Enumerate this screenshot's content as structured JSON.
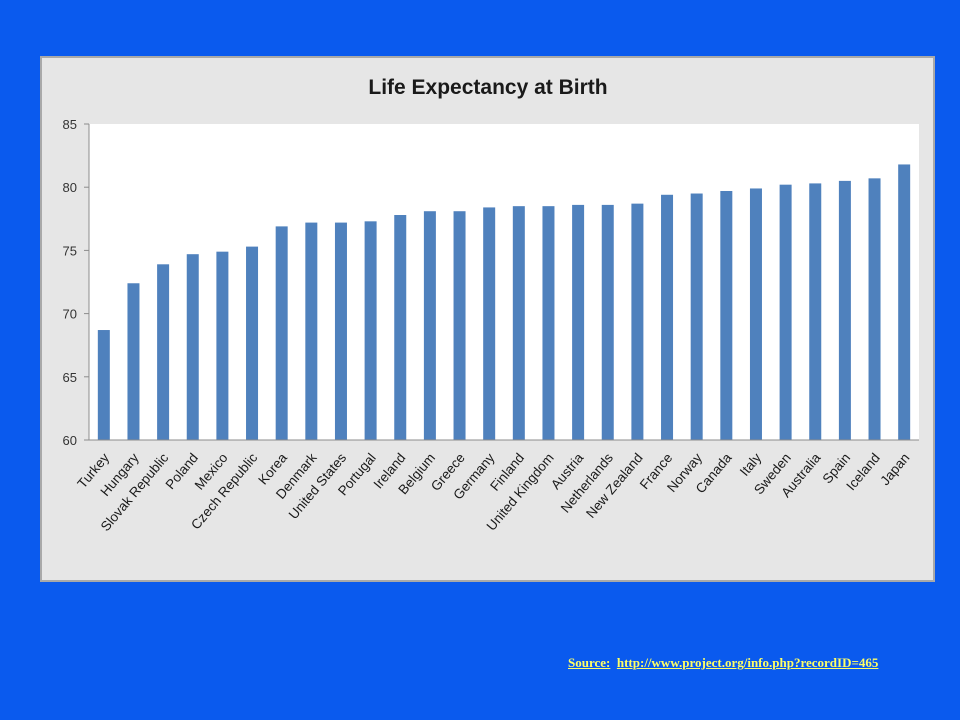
{
  "slide": {
    "source_label": "Source:",
    "source_url": "http://www.project.org/info.php?recordID=465"
  },
  "colors": {
    "background": "#0a5aee",
    "bar": "#4f81bd",
    "source_text": "#ffff66"
  },
  "chart_data": {
    "type": "bar",
    "title": "Life Expectancy at Birth",
    "xlabel": "",
    "ylabel": "",
    "ylim": [
      60,
      85
    ],
    "yticks": [
      60,
      65,
      70,
      75,
      80,
      85
    ],
    "grid": false,
    "legend": "none",
    "categories": [
      "Turkey",
      "Hungary",
      "Slovak Republic",
      "Poland",
      "Mexico",
      "Czech Republic",
      "Korea",
      "Denmark",
      "United States",
      "Portugal",
      "Ireland",
      "Belgium",
      "Greece",
      "Germany",
      "Finland",
      "United Kingdom",
      "Austria",
      "Netherlands",
      "New Zealand",
      "France",
      "Norway",
      "Canada",
      "Italy",
      "Sweden",
      "Australia",
      "Spain",
      "Iceland",
      "Japan"
    ],
    "values": [
      68.7,
      72.4,
      73.9,
      74.7,
      74.9,
      75.3,
      76.9,
      77.2,
      77.2,
      77.3,
      77.8,
      78.1,
      78.1,
      78.4,
      78.5,
      78.5,
      78.6,
      78.6,
      78.7,
      79.4,
      79.5,
      79.7,
      79.9,
      80.2,
      80.3,
      80.5,
      80.7,
      81.8
    ]
  }
}
